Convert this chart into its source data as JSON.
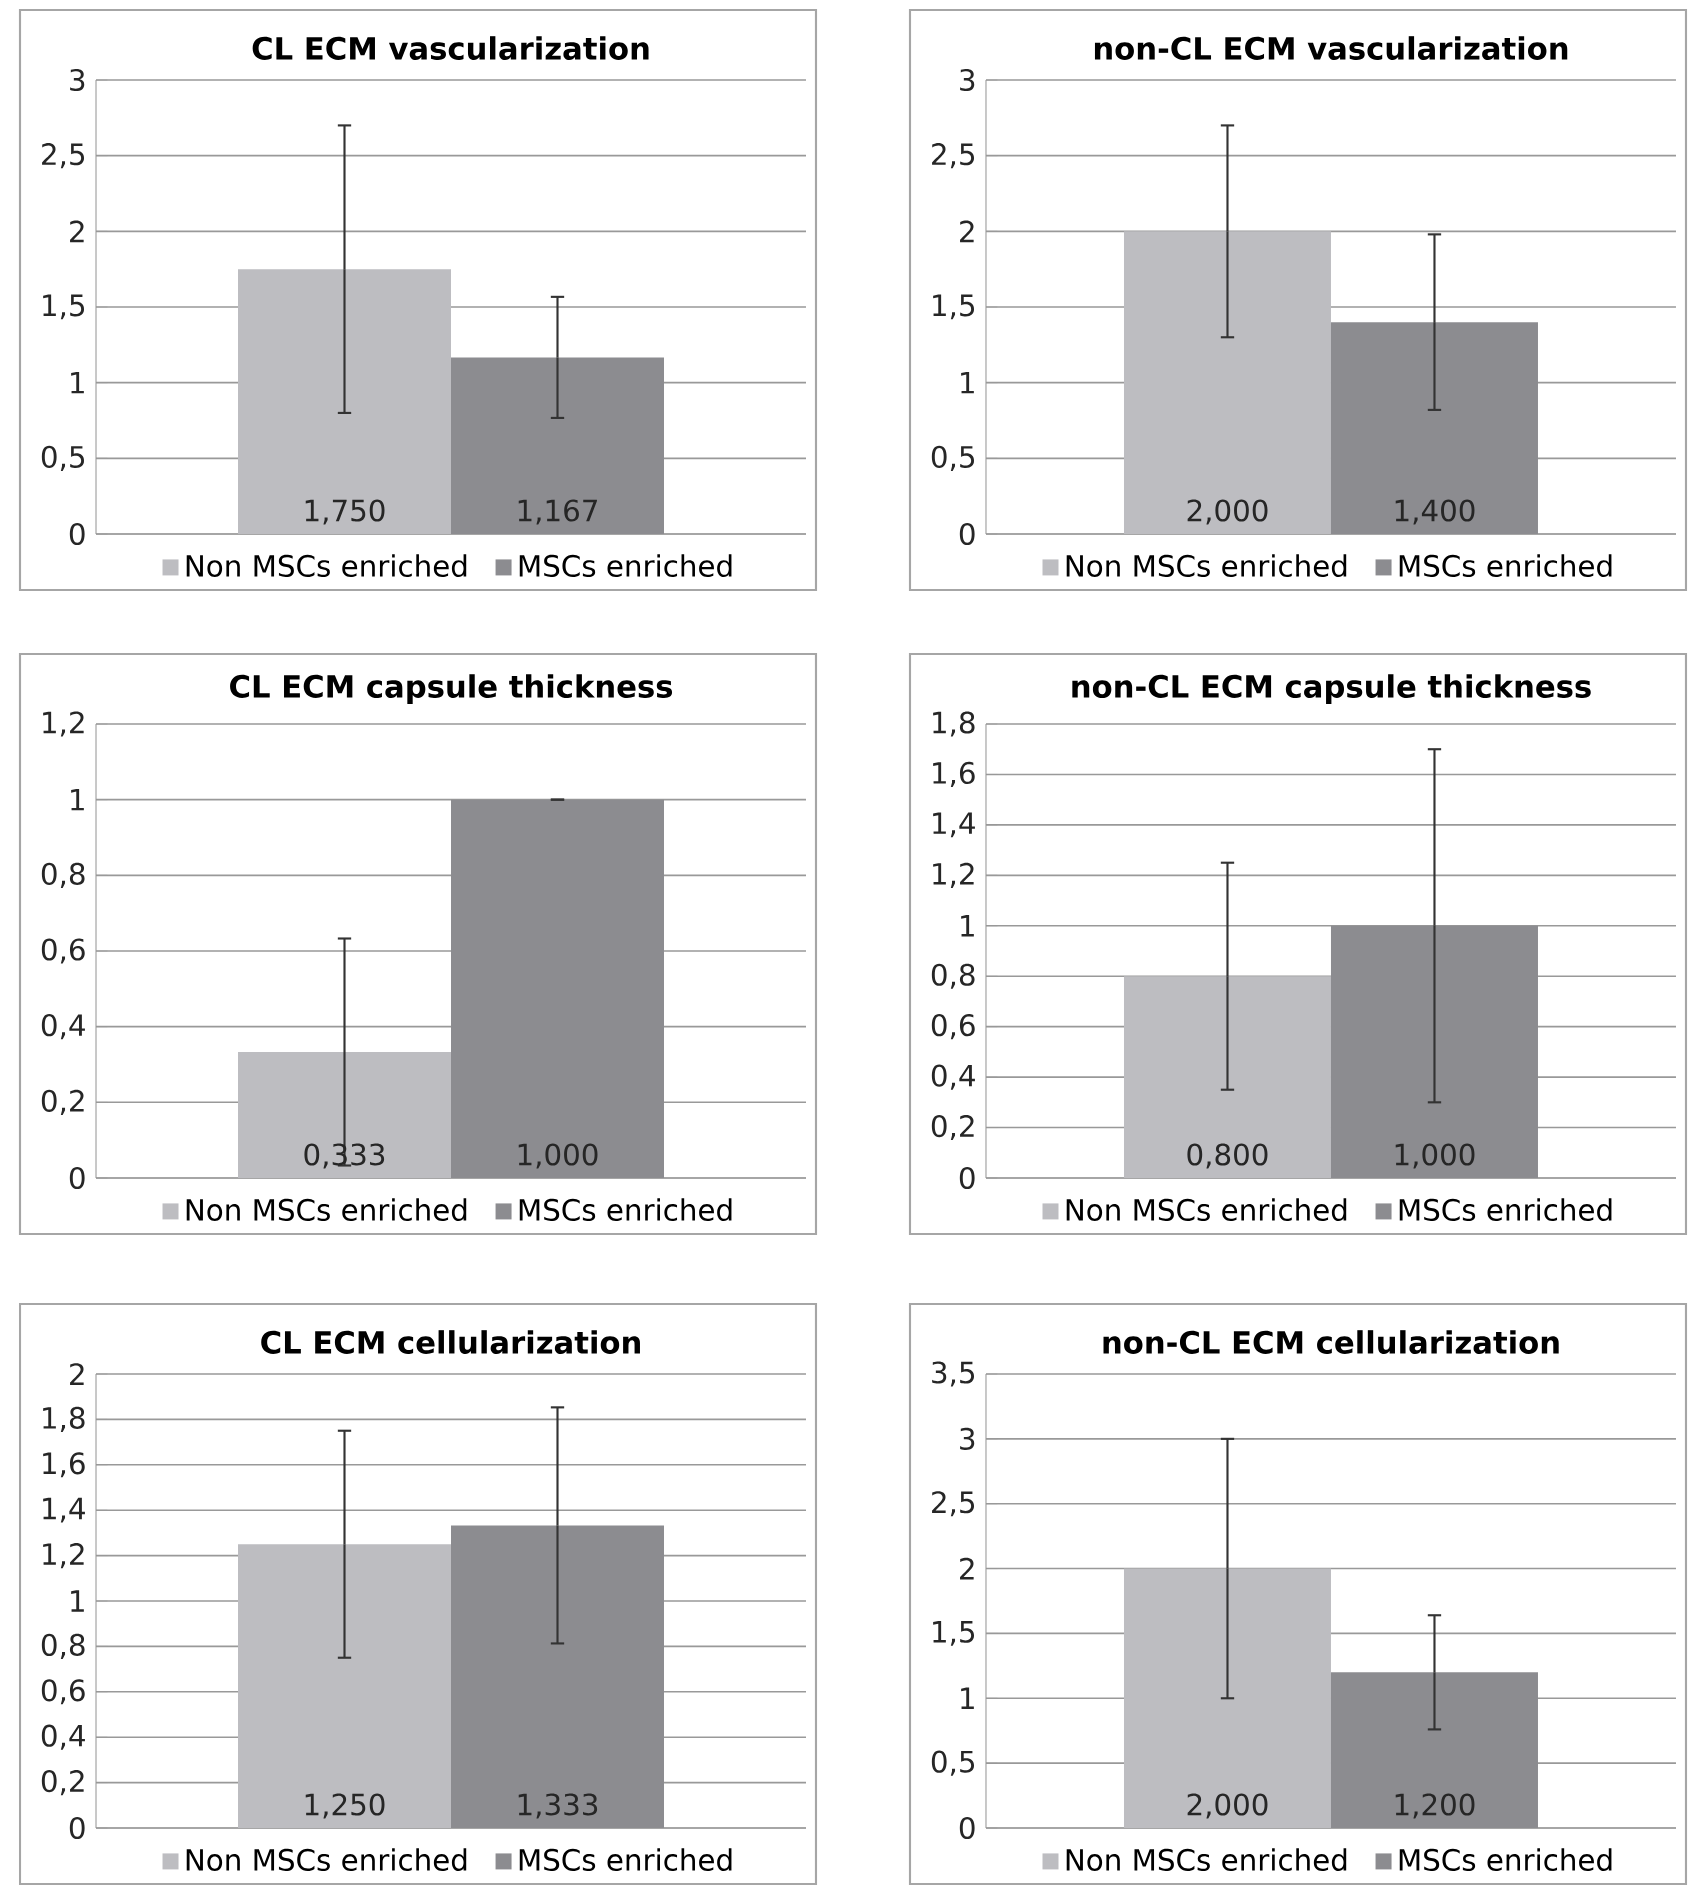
{
  "chart_data": [
    {
      "type": "bar",
      "title": "CL ECM vascularization",
      "categories": [
        null
      ],
      "ylim": [
        0,
        3
      ],
      "yticks": [
        0,
        {
          "value": 0.5,
          "label": "0,5"
        },
        1,
        {
          "value": 1.5,
          "label": "1,5"
        },
        2,
        {
          "value": 2.5,
          "label": "2,5"
        },
        3
      ],
      "grid": "y",
      "legend": "bottom",
      "series": [
        {
          "name": "Non MSCs enriched",
          "color": "#bdbdc1",
          "values": [
            1.75
          ],
          "errors": [
            0.95
          ],
          "value_labels": [
            "1,750"
          ]
        },
        {
          "name": "MSCs enriched",
          "color": "#8c8c90",
          "values": [
            1.167
          ],
          "errors": [
            0.4
          ],
          "value_labels": [
            "1,167"
          ]
        }
      ]
    },
    {
      "type": "bar",
      "title": "non-CL ECM vascularization",
      "categories": [
        null
      ],
      "ylim": [
        0,
        3
      ],
      "yticks": [
        0,
        {
          "value": 0.5,
          "label": "0,5"
        },
        1,
        {
          "value": 1.5,
          "label": "1,5"
        },
        2,
        {
          "value": 2.5,
          "label": "2,5"
        },
        3
      ],
      "grid": "y",
      "legend": "bottom",
      "series": [
        {
          "name": "Non MSCs enriched",
          "color": "#bdbdc1",
          "values": [
            2.0
          ],
          "errors": [
            0.7
          ],
          "value_labels": [
            "2,000"
          ]
        },
        {
          "name": "MSCs enriched",
          "color": "#8c8c90",
          "values": [
            1.4
          ],
          "errors": [
            0.58
          ],
          "value_labels": [
            "1,400"
          ]
        }
      ]
    },
    {
      "type": "bar",
      "title": "CL ECM capsule thickness",
      "categories": [
        null
      ],
      "ylim": [
        0,
        1.2
      ],
      "yticks": [
        0,
        {
          "value": 0.2,
          "label": "0,2"
        },
        {
          "value": 0.4,
          "label": "0,4"
        },
        {
          "value": 0.6,
          "label": "0,6"
        },
        {
          "value": 0.8,
          "label": "0,8"
        },
        1,
        {
          "value": 1.2,
          "label": "1,2"
        }
      ],
      "grid": "y",
      "legend": "bottom",
      "series": [
        {
          "name": "Non MSCs enriched",
          "color": "#bdbdc1",
          "values": [
            0.333
          ],
          "errors": [
            0.3
          ],
          "value_labels": [
            "0,333"
          ]
        },
        {
          "name": "MSCs enriched",
          "color": "#8c8c90",
          "values": [
            1.0
          ],
          "errors": [
            0
          ],
          "value_labels": [
            "1,000"
          ]
        }
      ]
    },
    {
      "type": "bar",
      "title": "non-CL ECM capsule thickness",
      "categories": [
        null
      ],
      "ylim": [
        0,
        1.8
      ],
      "yticks": [
        0,
        {
          "value": 0.2,
          "label": "0,2"
        },
        {
          "value": 0.4,
          "label": "0,4"
        },
        {
          "value": 0.6,
          "label": "0,6"
        },
        {
          "value": 0.8,
          "label": "0,8"
        },
        1,
        {
          "value": 1.2,
          "label": "1,2"
        },
        {
          "value": 1.4,
          "label": "1,4"
        },
        {
          "value": 1.6,
          "label": "1,6"
        },
        {
          "value": 1.8,
          "label": "1,8"
        }
      ],
      "grid": "y",
      "legend": "bottom",
      "series": [
        {
          "name": "Non MSCs enriched",
          "color": "#bdbdc1",
          "values": [
            0.8
          ],
          "errors": [
            0.45
          ],
          "value_labels": [
            "0,800"
          ]
        },
        {
          "name": "MSCs enriched",
          "color": "#8c8c90",
          "values": [
            1.0
          ],
          "errors": [
            0.7
          ],
          "value_labels": [
            "1,000"
          ]
        }
      ]
    },
    {
      "type": "bar",
      "title": "CL ECM cellularization",
      "categories": [
        null
      ],
      "ylim": [
        0,
        2
      ],
      "yticks": [
        0,
        {
          "value": 0.2,
          "label": "0,2"
        },
        {
          "value": 0.4,
          "label": "0,4"
        },
        {
          "value": 0.6,
          "label": "0,6"
        },
        {
          "value": 0.8,
          "label": "0,8"
        },
        1,
        {
          "value": 1.2,
          "label": "1,2"
        },
        {
          "value": 1.4,
          "label": "1,4"
        },
        {
          "value": 1.6,
          "label": "1,6"
        },
        {
          "value": 1.8,
          "label": "1,8"
        },
        2
      ],
      "grid": "y",
      "legend": "bottom",
      "series": [
        {
          "name": "Non MSCs enriched",
          "color": "#bdbdc1",
          "values": [
            1.25
          ],
          "errors": [
            0.5
          ],
          "value_labels": [
            "1,250"
          ]
        },
        {
          "name": "MSCs enriched",
          "color": "#8c8c90",
          "values": [
            1.333
          ],
          "errors": [
            0.52
          ],
          "value_labels": [
            "1,333"
          ]
        }
      ]
    },
    {
      "type": "bar",
      "title": "non-CL ECM cellularization",
      "categories": [
        null
      ],
      "ylim": [
        0,
        3.5
      ],
      "yticks": [
        0,
        {
          "value": 0.5,
          "label": "0,5"
        },
        1,
        {
          "value": 1.5,
          "label": "1,5"
        },
        2,
        {
          "value": 2.5,
          "label": "2,5"
        },
        3,
        {
          "value": 3.5,
          "label": "3,5"
        }
      ],
      "grid": "y",
      "legend": "bottom",
      "series": [
        {
          "name": "Non MSCs enriched",
          "color": "#bdbdc1",
          "values": [
            2.0
          ],
          "errors": [
            1.0
          ],
          "value_labels": [
            "2,000"
          ]
        },
        {
          "name": "MSCs enriched",
          "color": "#8c8c90",
          "values": [
            1.2
          ],
          "errors": [
            0.44
          ],
          "value_labels": [
            "1,200"
          ]
        }
      ]
    }
  ]
}
